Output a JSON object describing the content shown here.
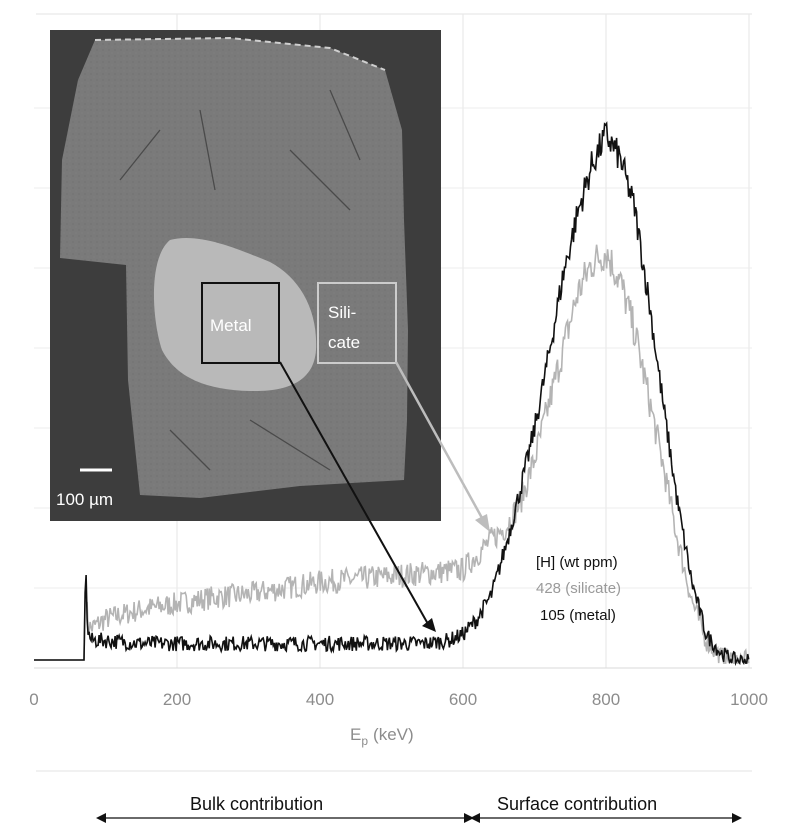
{
  "chart_data": {
    "type": "line",
    "xlabel": "E",
    "xlabel_sub": "p",
    "xlabel_unit": "(keV)",
    "ylabel": "",
    "xlim": [
      0,
      1000
    ],
    "ylim": [
      0,
      1
    ],
    "x_ticks": [
      0,
      200,
      400,
      600,
      800,
      1000
    ],
    "grid": true,
    "series": [
      {
        "key": "silicate",
        "color": "#b4b4b4",
        "x": [
          0,
          70,
          72,
          75,
          80,
          100,
          150,
          200,
          250,
          300,
          350,
          400,
          450,
          500,
          550,
          600,
          620,
          640,
          660,
          680,
          700,
          720,
          740,
          760,
          780,
          800,
          820,
          840,
          860,
          880,
          900,
          920,
          940,
          960,
          980,
          1000
        ],
        "y": [
          0.013,
          0.013,
          0.15,
          0.07,
          0.065,
          0.08,
          0.095,
          0.105,
          0.115,
          0.12,
          0.13,
          0.14,
          0.145,
          0.15,
          0.155,
          0.16,
          0.185,
          0.21,
          0.23,
          0.27,
          0.34,
          0.43,
          0.52,
          0.61,
          0.66,
          0.68,
          0.63,
          0.55,
          0.44,
          0.33,
          0.21,
          0.11,
          0.045,
          0.018,
          0.012,
          0.012
        ],
        "noise": 0.028
      },
      {
        "key": "metal",
        "color": "#111111",
        "x": [
          0,
          70,
          72,
          75,
          80,
          100,
          150,
          200,
          300,
          400,
          500,
          550,
          580,
          600,
          620,
          640,
          660,
          680,
          700,
          720,
          740,
          760,
          780,
          800,
          820,
          840,
          860,
          880,
          900,
          920,
          940,
          960,
          980,
          1000
        ],
        "y": [
          0.013,
          0.013,
          0.17,
          0.06,
          0.045,
          0.045,
          0.04,
          0.04,
          0.04,
          0.04,
          0.04,
          0.04,
          0.045,
          0.055,
          0.08,
          0.12,
          0.2,
          0.29,
          0.39,
          0.51,
          0.64,
          0.74,
          0.82,
          0.87,
          0.83,
          0.75,
          0.6,
          0.43,
          0.27,
          0.14,
          0.055,
          0.025,
          0.013,
          0.012
        ],
        "noise": 0.02
      }
    ],
    "legend": {
      "title": "[H] (wt ppm)",
      "entries": [
        {
          "label": "428 (silicate)",
          "color": "#9a9a9a"
        },
        {
          "label": "105 (metal)",
          "color": "#111111"
        }
      ],
      "placement": "center-right"
    },
    "annotations": {
      "bulk": "Bulk contribution",
      "surface": "Surface contribution"
    }
  },
  "inset": {
    "metal_label": "Metal",
    "silicate_label_line1": "Sili-",
    "silicate_label_line2": "cate",
    "scale_label": "100 µm"
  }
}
